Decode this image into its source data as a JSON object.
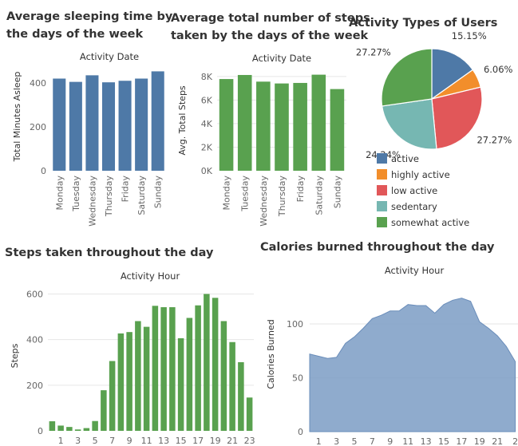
{
  "chart_data": [
    {
      "type": "bar",
      "title": [
        "Average sleeping time by",
        "the days of the week"
      ],
      "subtitle": "Activity Date",
      "ylabel": "Total Minutes Asleep",
      "categories": [
        "Monday",
        "Tuesday",
        "Wednesday",
        "Thursday",
        "Friday",
        "Saturday",
        "Sunday"
      ],
      "values": [
        420,
        405,
        435,
        403,
        410,
        420,
        453
      ],
      "ylim": [
        0,
        480
      ],
      "yticks": [
        0,
        200,
        400
      ],
      "color": "#4e79a7",
      "grid": false
    },
    {
      "type": "bar",
      "title": [
        "Average total number of steps",
        "taken by the days of the week"
      ],
      "subtitle": "Activity Date",
      "ylabel": "Avg. Total Steps",
      "categories": [
        "Monday",
        "Tuesday",
        "Wednesday",
        "Thursday",
        "Friday",
        "Saturday",
        "Sunday"
      ],
      "values": [
        7780,
        8125,
        7560,
        7405,
        7450,
        8150,
        6930
      ],
      "ylim": [
        0,
        8800
      ],
      "yticks": [
        0,
        2000,
        4000,
        6000,
        8000
      ],
      "ytick_labels": [
        "0K",
        "2K",
        "4K",
        "6K",
        "8K"
      ],
      "color": "#59a14f",
      "grid": true
    },
    {
      "type": "pie",
      "title": "Activity Types of Users",
      "categories": [
        "active",
        "highly active",
        "low active",
        "sedentary",
        "somewhat active"
      ],
      "values": [
        15.15,
        6.06,
        27.27,
        24.24,
        27.27
      ],
      "labels": [
        "15.15%",
        "6.06%",
        "27.27%",
        "24.24%",
        "27.27%"
      ],
      "colors": [
        "#4e79a7",
        "#f28e2b",
        "#e15759",
        "#76b7b2",
        "#59a14f"
      ],
      "legend": "bottom"
    },
    {
      "type": "bar",
      "title": "Steps taken throughout the day",
      "subtitle": "Activity Hour",
      "ylabel": "Steps",
      "x": [
        0,
        1,
        2,
        3,
        4,
        5,
        6,
        7,
        8,
        9,
        10,
        11,
        12,
        13,
        14,
        15,
        16,
        17,
        18,
        19,
        20,
        21,
        22,
        23
      ],
      "values": [
        42,
        23,
        17,
        6,
        12,
        43,
        178,
        306,
        427,
        433,
        481,
        456,
        548,
        542,
        542,
        406,
        495,
        550,
        600,
        583,
        481,
        389,
        301,
        146
      ],
      "ylim": [
        0,
        640
      ],
      "yticks": [
        0,
        200,
        400,
        600
      ],
      "xtick_labels": [
        "1",
        "3",
        "5",
        "7",
        "9",
        "11",
        "13",
        "15",
        "17",
        "19",
        "21",
        "23"
      ],
      "color": "#59a14f",
      "grid": true
    },
    {
      "type": "area",
      "title": "Calories burned throughout the day",
      "subtitle": "Activity Hour",
      "ylabel": "Calories Burned",
      "x": [
        0,
        1,
        2,
        3,
        4,
        5,
        6,
        7,
        8,
        9,
        10,
        11,
        12,
        13,
        14,
        15,
        16,
        17,
        18,
        19,
        20,
        21,
        22,
        23
      ],
      "values": [
        72,
        70,
        68,
        69,
        82,
        88,
        96,
        105,
        108,
        112,
        112,
        118,
        117,
        117,
        110,
        118,
        122,
        124,
        121,
        102,
        96,
        89,
        79,
        65
      ],
      "ylim": [
        0,
        140
      ],
      "yticks": [
        0,
        50,
        100
      ],
      "xtick_labels": [
        "1",
        "3",
        "5",
        "7",
        "9",
        "11",
        "13",
        "15",
        "17",
        "19",
        "21",
        "2"
      ],
      "color": "#7b9cc4",
      "grid": true
    }
  ]
}
